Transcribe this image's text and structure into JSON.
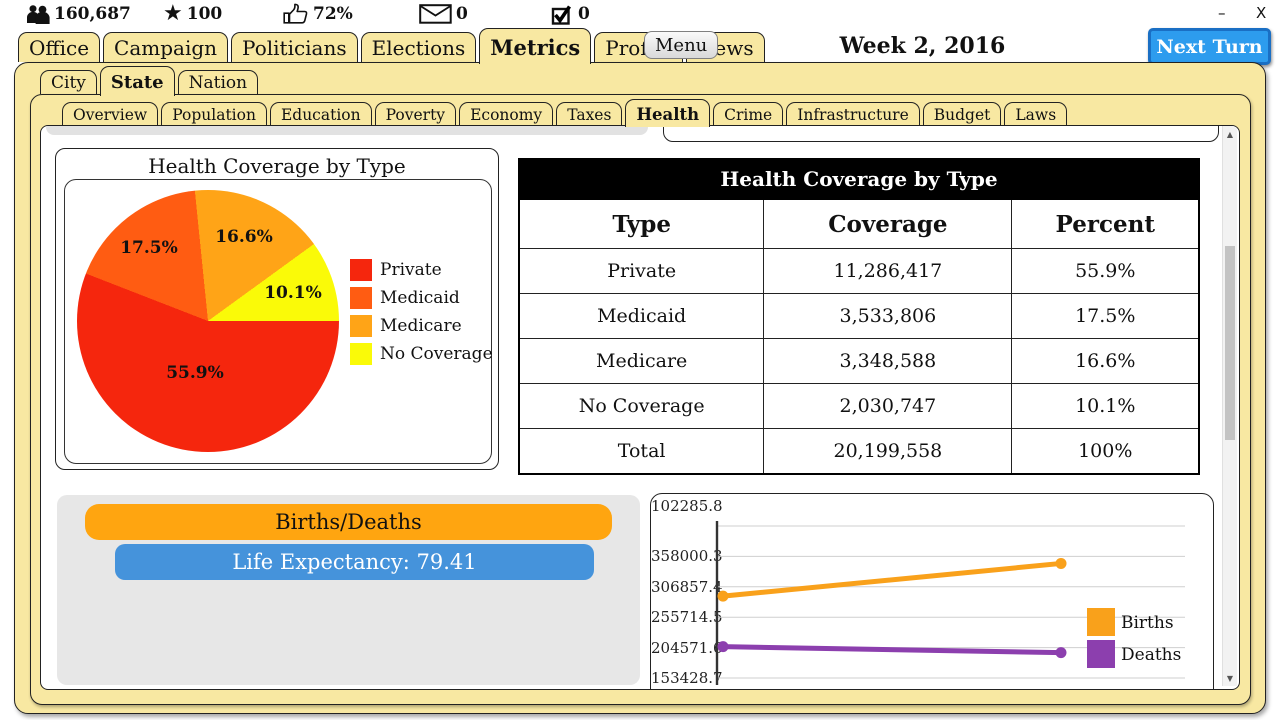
{
  "window": {
    "minimize_label": "–",
    "close_label": "X"
  },
  "statsbar": {
    "population": "160,687",
    "stars": "100",
    "approval": "72%",
    "mail": "0",
    "tasks": "0"
  },
  "topbar": {
    "menu_label": "Menu",
    "date": "Week 2, 2016",
    "next_turn_label": "Next Turn"
  },
  "main_tabs": [
    "Office",
    "Campaign",
    "Politicians",
    "Elections",
    "Metrics",
    "Profile",
    "News"
  ],
  "region_tabs": [
    "City",
    "State",
    "Nation"
  ],
  "metric_tabs": [
    "Overview",
    "Population",
    "Education",
    "Poverty",
    "Economy",
    "Taxes",
    "Health",
    "Crime",
    "Infrastructure",
    "Budget",
    "Laws"
  ],
  "active_tabs": {
    "main": "Metrics",
    "region": "State",
    "metric": "Health"
  },
  "pie_card": {
    "title": "Health Coverage by Type"
  },
  "table": {
    "title": "Health Coverage by Type",
    "headers": [
      "Type",
      "Coverage",
      "Percent"
    ],
    "rows": [
      [
        "Private",
        "11,286,417",
        "55.9%"
      ],
      [
        "Medicaid",
        "3,533,806",
        "17.5%"
      ],
      [
        "Medicare",
        "3,348,588",
        "16.6%"
      ],
      [
        "No Coverage",
        "2,030,747",
        "10.1%"
      ],
      [
        "Total",
        "20,199,558",
        "100%"
      ]
    ]
  },
  "vitals": {
    "births_deaths_label": "Births/Deaths",
    "life_expectancy_label": "Life Expectancy: 79.41"
  },
  "colors": {
    "panel_yellow": "#f8e8a2",
    "next_turn_blue": "#2d9cee",
    "pill_blue": "#4593db",
    "pill_orange": "#ffa510",
    "table_header_bg": "#000000"
  },
  "chart_data": [
    {
      "type": "pie",
      "title": "Health Coverage by Type",
      "labels": [
        "Private",
        "Medicaid",
        "Medicare",
        "No Coverage"
      ],
      "values": [
        55.9,
        17.5,
        16.6,
        10.1
      ],
      "slice_labels": [
        "55.9%",
        "17.5%",
        "16.6%",
        "10.1%"
      ],
      "colors": [
        "#f5260d",
        "#ff5c12",
        "#ffa417",
        "#fafa08"
      ],
      "start": "east-clockwise",
      "legend_position": "right"
    },
    {
      "type": "line",
      "title": "Births/Deaths",
      "x": [
        1,
        2
      ],
      "series": [
        {
          "name": "Births",
          "color": "#f9a11b",
          "values": [
            240000,
            295000
          ]
        },
        {
          "name": "Deaths",
          "color": "#8c3fae",
          "values": [
            155000,
            145000
          ]
        }
      ],
      "ylim": [
        102285.8,
        358000.3
      ],
      "yticks": [
        358000.3,
        306857.4,
        255714.5,
        204571.6,
        153428.7,
        102285.8
      ],
      "grid": true,
      "legend_position": "right"
    }
  ]
}
